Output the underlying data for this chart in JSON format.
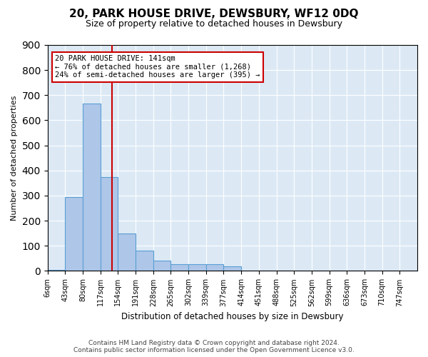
{
  "title": "20, PARK HOUSE DRIVE, DEWSBURY, WF12 0DQ",
  "subtitle": "Size of property relative to detached houses in Dewsbury",
  "xlabel": "Distribution of detached houses by size in Dewsbury",
  "ylabel": "Number of detached properties",
  "bin_labels": [
    "6sqm",
    "43sqm",
    "80sqm",
    "117sqm",
    "154sqm",
    "191sqm",
    "228sqm",
    "265sqm",
    "302sqm",
    "339sqm",
    "377sqm",
    "414sqm",
    "451sqm",
    "488sqm",
    "525sqm",
    "562sqm",
    "599sqm",
    "636sqm",
    "673sqm",
    "710sqm",
    "747sqm"
  ],
  "bar_heights": [
    5,
    295,
    668,
    375,
    150,
    80,
    40,
    28,
    28,
    28,
    18,
    0,
    0,
    0,
    0,
    0,
    0,
    0,
    0,
    0,
    0
  ],
  "bar_color": "#aec6e8",
  "bar_edge_color": "#5a9fd4",
  "annotation_line1": "20 PARK HOUSE DRIVE: 141sqm",
  "annotation_line2": "← 76% of detached houses are smaller (1,268)",
  "annotation_line3": "24% of semi-detached houses are larger (395) →",
  "annotation_box_color": "#cc0000",
  "vline_color": "#cc0000",
  "ylim": [
    0,
    900
  ],
  "yticks": [
    0,
    100,
    200,
    300,
    400,
    500,
    600,
    700,
    800,
    900
  ],
  "bg_color": "#dce9f5",
  "footer_line1": "Contains HM Land Registry data © Crown copyright and database right 2024.",
  "footer_line2": "Contains public sector information licensed under the Open Government Licence v3.0."
}
